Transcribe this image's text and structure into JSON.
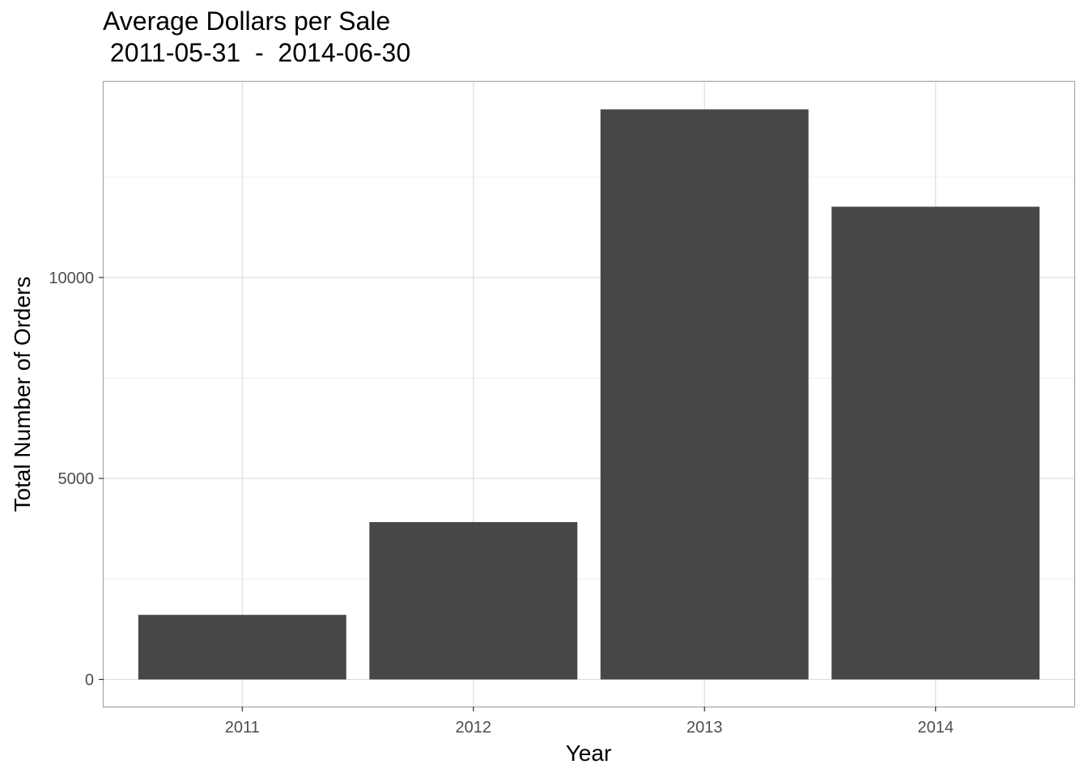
{
  "chart_data": {
    "type": "bar",
    "title": "Average Dollars per Sale",
    "subtitle": " 2011-05-31  -  2014-06-30",
    "xlabel": "Year",
    "ylabel": "Total Number of Orders",
    "categories": [
      "2011",
      "2012",
      "2013",
      "2014"
    ],
    "values": [
      1607,
      3915,
      14182,
      11761
    ],
    "ylim": [
      -675,
      14870
    ],
    "y_ticks": [
      0,
      5000,
      10000
    ],
    "y_tick_labels": [
      "0",
      "5000",
      "10000"
    ],
    "y_minor_ticks": [
      2500,
      7500,
      12500
    ],
    "grid": true,
    "legend": "none",
    "colors": {
      "bar": "#474747",
      "grid_major": "#dedede",
      "grid_minor": "#efefef",
      "panel_border": "#a6a6a6",
      "tick_text": "#4d4d4d",
      "text": "#000000"
    }
  }
}
